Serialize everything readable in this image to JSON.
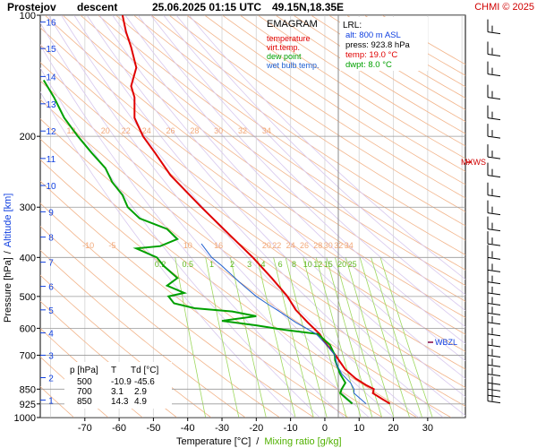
{
  "header": {
    "station": "Prostejov",
    "mode": "descent",
    "datetime": "25.06.2025 01:15 UTC",
    "coords": "49.15N,18.35E",
    "credit": "CHMI © 2025"
  },
  "legend": {
    "title": "EMAGRAM",
    "items": [
      {
        "label": "temperature",
        "color": "#e00000"
      },
      {
        "label": "virt.temp.",
        "color": "#e00000"
      },
      {
        "label": "dew point",
        "color": "#00a000"
      },
      {
        "label": "wet bulb temp.",
        "color": "#2060d0"
      }
    ]
  },
  "lrl_box": {
    "title": "LRL:",
    "lines": [
      {
        "text": "alt: 800 m ASL",
        "color": "#1040e0"
      },
      {
        "text": "press: 923.8 hPa",
        "color": "#000000"
      },
      {
        "text": "temp: 19.0 °C",
        "color": "#e00000"
      },
      {
        "text": "dwpt: 8.0 °C",
        "color": "#00a000"
      }
    ]
  },
  "table": {
    "headers": [
      "p [hPa]",
      "T",
      "Td [°C]"
    ],
    "rows": [
      [
        "500",
        "-10.9",
        "-45.6"
      ],
      [
        "700",
        "3.1",
        "2.9"
      ],
      [
        "850",
        "14.3",
        "4.9"
      ]
    ]
  },
  "markers": {
    "mxws": "MXWS",
    "wbzl": "WBZL"
  },
  "chart_data": {
    "type": "line",
    "xlabel": "Temperature [°C]",
    "xlabel_sep": "/",
    "xlabel2": "Mixing ratio [g/kg]",
    "ylabel": "Pressure [hPa]",
    "ylabel_sep": "/",
    "ylabel2": "Altitude [km]",
    "xlim": [
      -83,
      41
    ],
    "ylim": [
      1000,
      100
    ],
    "y_scale": "log",
    "x_ticks": [
      -70,
      -60,
      -50,
      -40,
      -30,
      -20,
      -10,
      0,
      10,
      20,
      30
    ],
    "y_ticks": [
      100,
      200,
      300,
      400,
      500,
      600,
      700,
      850,
      925,
      1000
    ],
    "altitude_ticks": [
      {
        "km": "1",
        "p": 905
      },
      {
        "km": "2",
        "p": 796
      },
      {
        "km": "3",
        "p": 700
      },
      {
        "km": "4",
        "p": 616
      },
      {
        "km": "5",
        "p": 540
      },
      {
        "km": "6",
        "p": 472
      },
      {
        "km": "7",
        "p": 411
      },
      {
        "km": "8",
        "p": 356
      },
      {
        "km": "9",
        "p": 308
      },
      {
        "km": "10",
        "p": 265
      },
      {
        "km": "11",
        "p": 227
      },
      {
        "km": "12",
        "p": 194
      },
      {
        "km": "13",
        "p": 166
      },
      {
        "km": "14",
        "p": 142
      },
      {
        "km": "15",
        "p": 121
      },
      {
        "km": "16",
        "p": 104
      }
    ],
    "mixing_ratio_labels": {
      "upper_row_p": 200,
      "upper": [
        {
          "text": "12",
          "t": -74
        },
        {
          "text": "20",
          "t": -64
        },
        {
          "text": "22",
          "t": -58
        },
        {
          "text": "24",
          "t": -52
        },
        {
          "text": "26",
          "t": -45
        },
        {
          "text": "28",
          "t": -38
        },
        {
          "text": "30",
          "t": -31
        },
        {
          "text": "32",
          "t": -24
        },
        {
          "text": "34",
          "t": -17
        }
      ],
      "mid_row_p": 385,
      "mid": [
        {
          "text": "-10",
          "t": -69
        },
        {
          "text": "-5",
          "t": -62
        },
        {
          "text": "10",
          "t": -40
        },
        {
          "text": "16",
          "t": -31
        },
        {
          "text": "20",
          "t": -17
        },
        {
          "text": "22",
          "t": -14
        },
        {
          "text": "24",
          "t": -10
        },
        {
          "text": "26",
          "t": -6
        },
        {
          "text": "28",
          "t": -2
        },
        {
          "text": "30",
          "t": 1
        },
        {
          "text": "32",
          "t": 4
        },
        {
          "text": "34",
          "t": 7
        }
      ],
      "green_row_p": 422,
      "green": [
        {
          "text": "0.2",
          "t": -48
        },
        {
          "text": "0.5",
          "t": -40
        },
        {
          "text": "1",
          "t": -33
        },
        {
          "text": "2",
          "t": -27
        },
        {
          "text": "3",
          "t": -22
        },
        {
          "text": "4",
          "t": -18
        },
        {
          "text": "6",
          "t": -13
        },
        {
          "text": "8",
          "t": -9
        },
        {
          "text": "10",
          "t": -5
        },
        {
          "text": "12",
          "t": -2
        },
        {
          "text": "15",
          "t": 1
        },
        {
          "text": "20",
          "t": 5
        },
        {
          "text": "25",
          "t": 8
        }
      ]
    },
    "series": [
      {
        "name": "temperature",
        "color": "#e00000",
        "points": [
          [
            923.8,
            19.0
          ],
          [
            900,
            16.8
          ],
          [
            870,
            14.0
          ],
          [
            850,
            14.3
          ],
          [
            830,
            12.0
          ],
          [
            800,
            9.0
          ],
          [
            760,
            6.0
          ],
          [
            700,
            3.1
          ],
          [
            650,
            0.0
          ],
          [
            620,
            -1.5
          ],
          [
            580,
            -5.0
          ],
          [
            540,
            -8.5
          ],
          [
            500,
            -10.9
          ],
          [
            450,
            -15.5
          ],
          [
            400,
            -21.0
          ],
          [
            350,
            -28.0
          ],
          [
            300,
            -36.0
          ],
          [
            250,
            -45.0
          ],
          [
            220,
            -49.5
          ],
          [
            200,
            -53.0
          ],
          [
            180,
            -55.5
          ],
          [
            160,
            -55.5
          ],
          [
            150,
            -56.5
          ],
          [
            135,
            -55.0
          ],
          [
            120,
            -56.5
          ],
          [
            110,
            -58.0
          ],
          [
            100,
            -59.0
          ]
        ]
      },
      {
        "name": "dew point",
        "color": "#00a000",
        "points": [
          [
            923.8,
            8.0
          ],
          [
            900,
            6.5
          ],
          [
            870,
            4.5
          ],
          [
            850,
            4.9
          ],
          [
            820,
            6.0
          ],
          [
            780,
            4.5
          ],
          [
            720,
            3.0
          ],
          [
            700,
            2.9
          ],
          [
            660,
            1.5
          ],
          [
            620,
            -2.0
          ],
          [
            605,
            -12.0
          ],
          [
            590,
            -20.0
          ],
          [
            575,
            -30.0
          ],
          [
            560,
            -20.0
          ],
          [
            545,
            -27.0
          ],
          [
            535,
            -38.0
          ],
          [
            520,
            -44.0
          ],
          [
            500,
            -45.6
          ],
          [
            490,
            -41.0
          ],
          [
            470,
            -46.0
          ],
          [
            450,
            -43.0
          ],
          [
            420,
            -47.0
          ],
          [
            400,
            -49.0
          ],
          [
            380,
            -55.0
          ],
          [
            375,
            -48.0
          ],
          [
            360,
            -43.0
          ],
          [
            340,
            -46.0
          ],
          [
            320,
            -54.0
          ],
          [
            300,
            -57.5
          ],
          [
            280,
            -59.0
          ],
          [
            260,
            -62.0
          ],
          [
            240,
            -64.0
          ],
          [
            220,
            -68.0
          ],
          [
            200,
            -72.0
          ],
          [
            180,
            -76.0
          ],
          [
            160,
            -79.0
          ],
          [
            145,
            -82.0
          ]
        ]
      },
      {
        "name": "wet bulb temp.",
        "color": "#2060d0",
        "points": [
          [
            923.8,
            12.0
          ],
          [
            900,
            10.5
          ],
          [
            870,
            8.5
          ],
          [
            850,
            8.5
          ],
          [
            820,
            7.5
          ],
          [
            780,
            5.0
          ],
          [
            740,
            3.5
          ],
          [
            700,
            3.0
          ],
          [
            660,
            0.5
          ],
          [
            620,
            -2.5
          ],
          [
            580,
            -8.5
          ],
          [
            550,
            -12.5
          ],
          [
            520,
            -17.0
          ],
          [
            500,
            -20.0
          ],
          [
            460,
            -25.0
          ],
          [
            420,
            -30.0
          ],
          [
            400,
            -33.0
          ],
          [
            370,
            -36.0
          ]
        ]
      }
    ]
  }
}
